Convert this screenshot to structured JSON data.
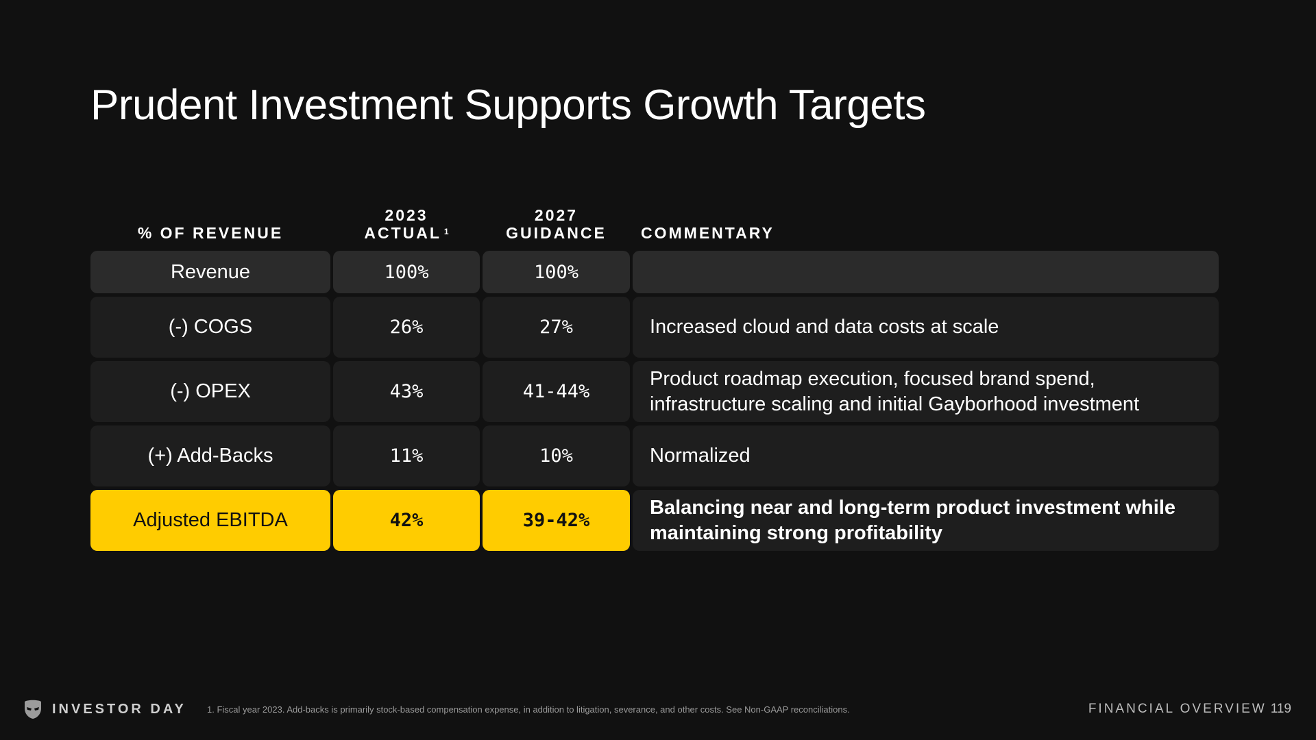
{
  "title": "Prudent Investment Supports Growth Targets",
  "headers": {
    "metric": "% OF REVENUE",
    "actual_year": "2023",
    "actual_label": "ACTUAL",
    "actual_footnote_marker": "1",
    "guidance_year": "2027",
    "guidance_label": "GUIDANCE",
    "commentary": "COMMENTARY"
  },
  "rows": [
    {
      "metric": "Revenue",
      "actual": "100%",
      "guidance": "100%",
      "commentary": ""
    },
    {
      "metric": "(-) COGS",
      "actual": "26%",
      "guidance": "27%",
      "commentary": "Increased cloud and data costs at scale"
    },
    {
      "metric": "(-) OPEX",
      "actual": "43%",
      "guidance": "41-44%",
      "commentary": "Product roadmap execution, focused brand spend, infrastructure scaling  and initial Gayborhood investment"
    },
    {
      "metric": "(+) Add-Backs",
      "actual": "11%",
      "guidance": "10%",
      "commentary": "Normalized"
    },
    {
      "metric": "Adjusted EBITDA",
      "actual": "42%",
      "guidance": "39-42%",
      "commentary": "Balancing near and long-term product investment while maintaining strong profitability"
    }
  ],
  "colors": {
    "background": "#111111",
    "highlight": "#ffcc00",
    "row_light": "#2b2b2b",
    "row_dark": "#1e1e1e"
  },
  "footer": {
    "logo_icon": "grindr-mask-icon",
    "event": "INVESTOR DAY",
    "footnote": "1. Fiscal year 2023. Add-backs is primarily stock-based compensation expense, in addition to litigation, severance, and other costs. See Non-GAAP reconciliations.",
    "section": "FINANCIAL OVERVIEW",
    "page_number": "119"
  }
}
